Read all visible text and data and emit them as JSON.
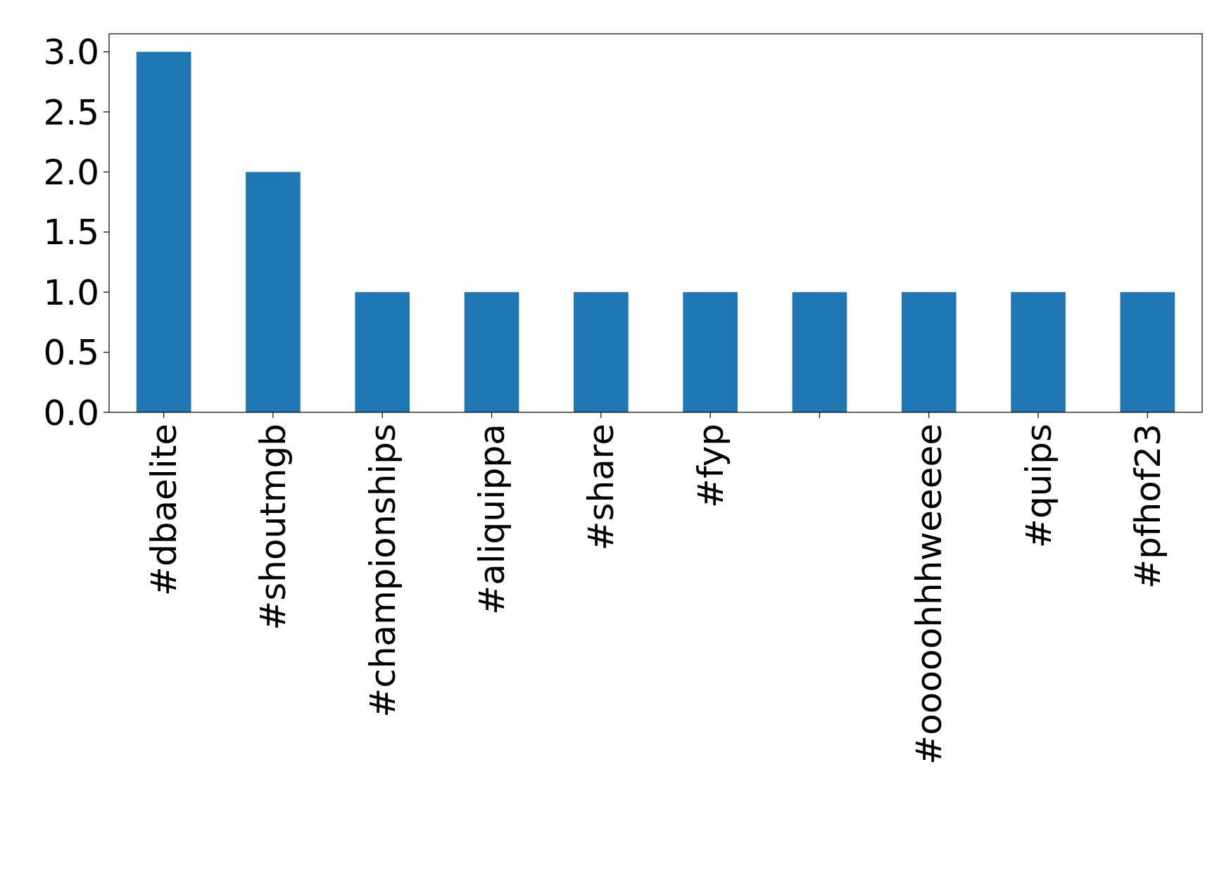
{
  "chart_data": {
    "type": "bar",
    "categories": [
      "#dbaelite",
      "#shoutmgb",
      "#championships",
      "#aliquippa",
      "#share",
      "#fyp",
      null,
      "#ooooohhhweeeee",
      "#quips",
      "#pfhof23"
    ],
    "values": [
      3,
      2,
      1,
      1,
      1,
      1,
      1,
      1,
      1,
      1
    ],
    "color": "#1f77b4",
    "ylim": [
      0,
      3.15
    ],
    "yticks": [
      {
        "value": 0,
        "label": "0.0"
      },
      {
        "value": 0.5,
        "label": "0.5"
      },
      {
        "value": 1,
        "label": "1.0"
      },
      {
        "value": 1.5,
        "label": "1.5"
      },
      {
        "value": 2,
        "label": "2.0"
      },
      {
        "value": 2.5,
        "label": "2.5"
      },
      {
        "value": 3,
        "label": "3.0"
      }
    ]
  }
}
